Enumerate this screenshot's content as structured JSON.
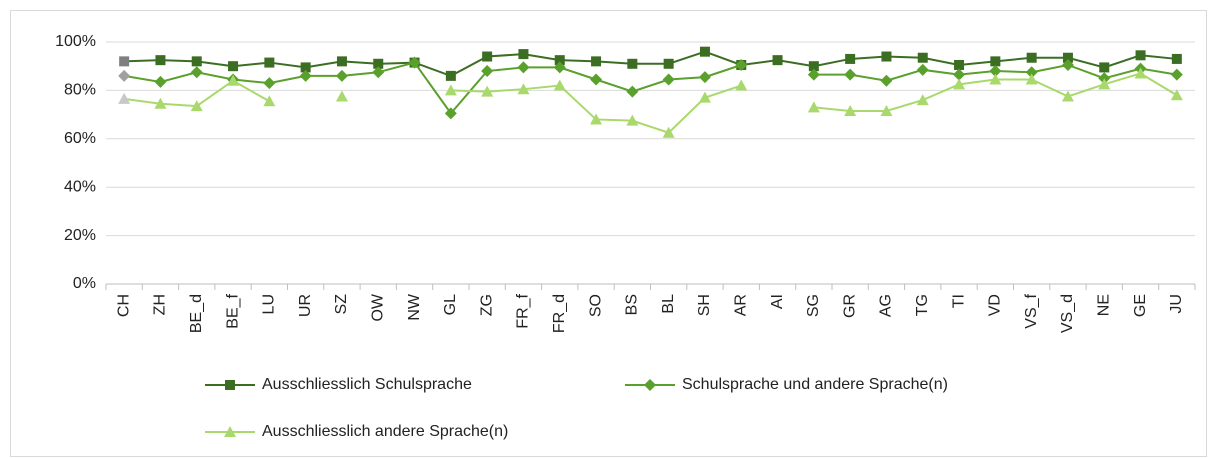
{
  "chart_data": {
    "type": "line",
    "categories": [
      "CH",
      "ZH",
      "BE_d",
      "BE_f",
      "LU",
      "UR",
      "SZ",
      "OW",
      "NW",
      "GL",
      "ZG",
      "FR_f",
      "FR_d",
      "SO",
      "BS",
      "BL",
      "SH",
      "AR",
      "AI",
      "SG",
      "GR",
      "AG",
      "TG",
      "TI",
      "VD",
      "VS_f",
      "VS_d",
      "NE",
      "GE",
      "JU"
    ],
    "series": [
      {
        "name": "Ausschliesslich Schulsprache",
        "color": "#3b6e22",
        "marker": "square",
        "highlight_color": "#7f7f7f",
        "values": [
          92,
          92.5,
          92,
          90,
          91.5,
          89.5,
          92,
          91,
          91.5,
          86,
          94,
          95,
          92.5,
          92,
          91,
          91,
          96,
          90.5,
          92.5,
          90,
          93,
          94,
          93.5,
          90.5,
          92,
          93.5,
          93.5,
          89.5,
          94.5,
          93
        ]
      },
      {
        "name": "Schulsprache und andere Sprache(n)",
        "color": "#5aa02c",
        "marker": "diamond",
        "highlight_color": "#a0a0a0",
        "values": [
          86,
          83.5,
          87.5,
          84.5,
          83,
          86,
          86,
          87.5,
          91.5,
          70.5,
          88,
          89.5,
          89.5,
          84.5,
          79.5,
          84.5,
          85.5,
          90.5,
          null,
          86.5,
          86.5,
          84,
          88.5,
          86.5,
          88,
          87.5,
          90.5,
          85,
          89,
          86.5
        ]
      },
      {
        "name": "Ausschliesslich andere Sprache(n)",
        "color": "#a9d96c",
        "marker": "triangle",
        "highlight_color": "#c8c8c8",
        "values": [
          76.5,
          74.5,
          73.5,
          84,
          75.5,
          null,
          77.5,
          null,
          null,
          80,
          79.5,
          80.5,
          82,
          68,
          67.5,
          62.5,
          77,
          82,
          null,
          73,
          71.5,
          71.5,
          76,
          82.5,
          84.5,
          84.5,
          77.5,
          82.5,
          87,
          78
        ]
      }
    ],
    "highlight_index": 0,
    "ylim": [
      0,
      100
    ],
    "yticks": [
      {
        "value": 0,
        "label": "0%"
      },
      {
        "value": 20,
        "label": "20%"
      },
      {
        "value": 40,
        "label": "40%"
      },
      {
        "value": 60,
        "label": "60%"
      },
      {
        "value": 80,
        "label": "80%"
      },
      {
        "value": 100,
        "label": "100%"
      }
    ],
    "grid": true,
    "legend": "bottom"
  }
}
